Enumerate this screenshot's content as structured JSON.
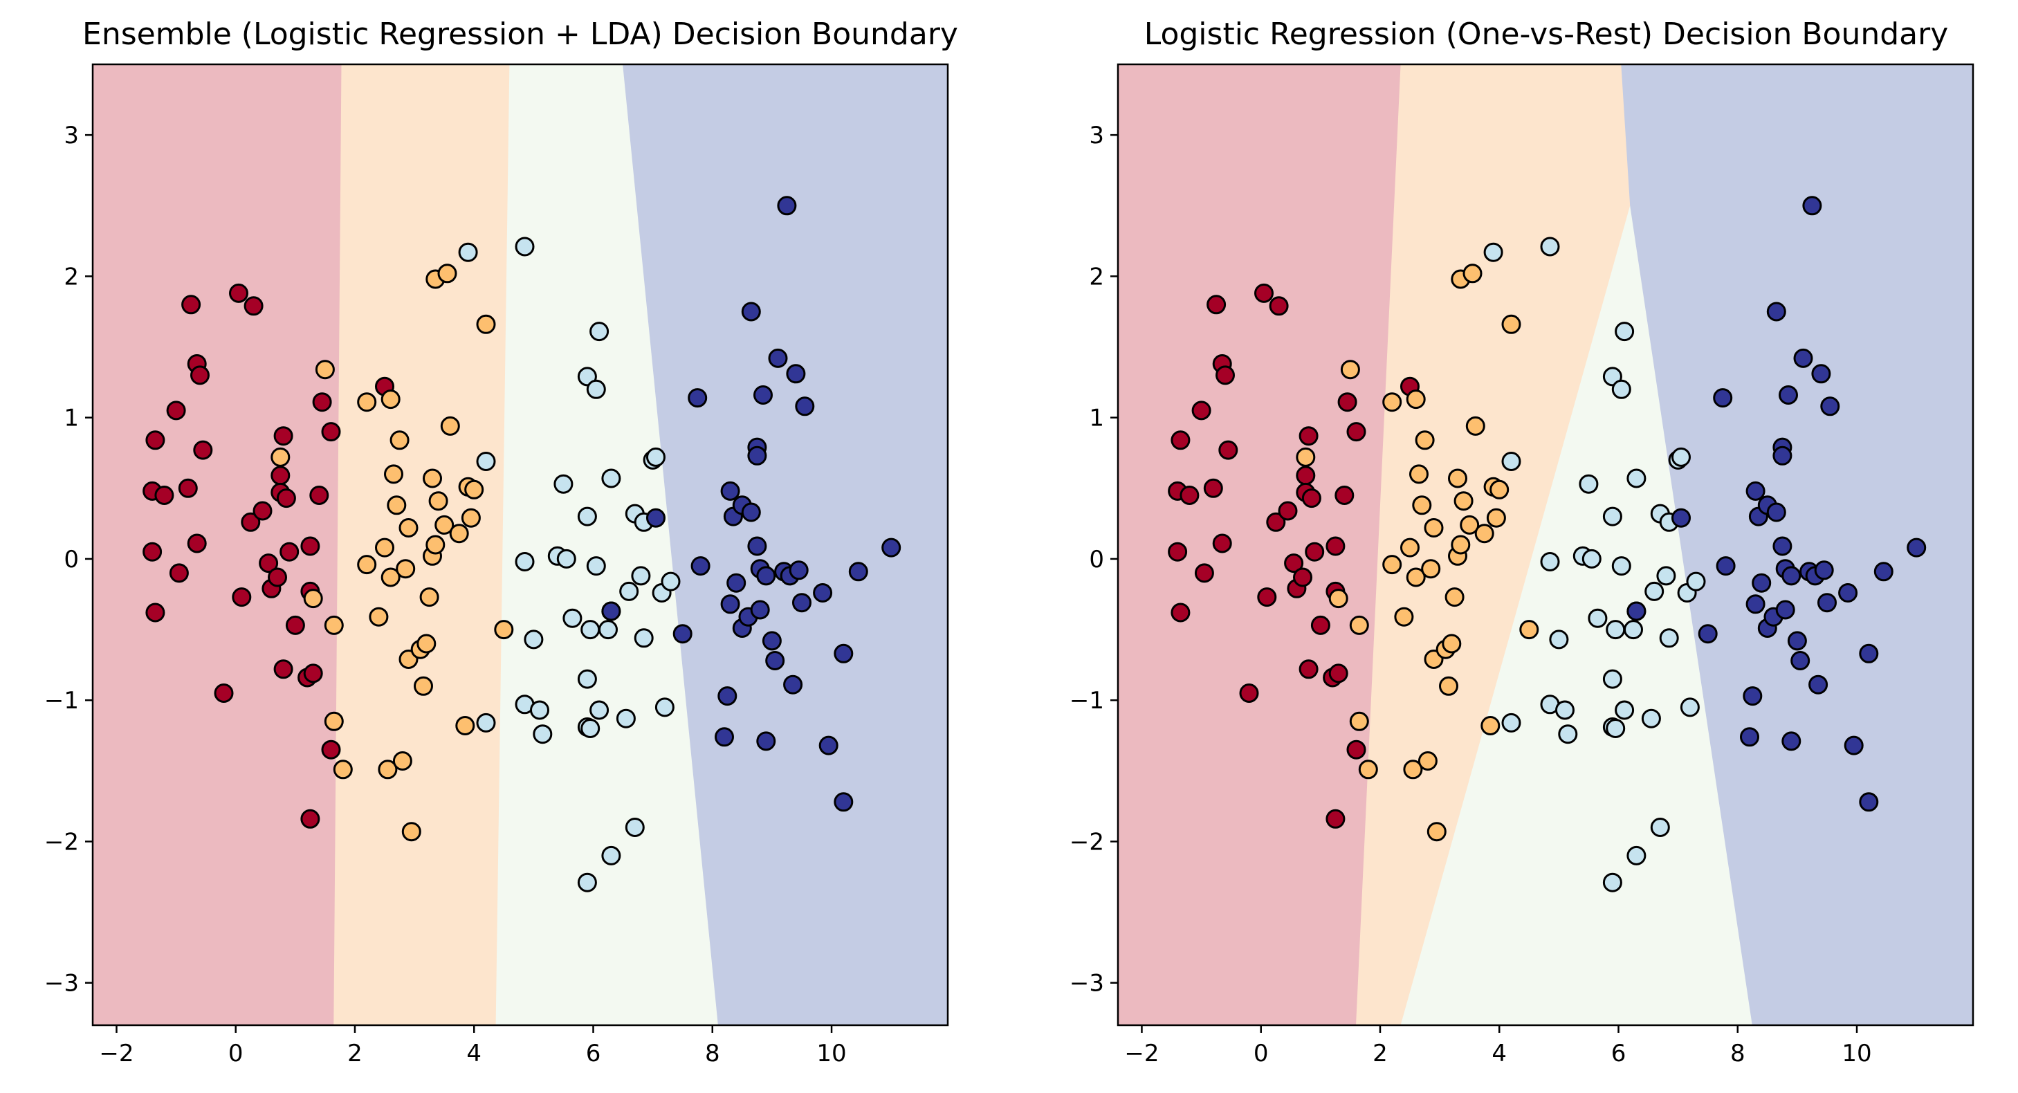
{
  "chart_data": [
    {
      "type": "scatter",
      "title": "Ensemble (Logistic Regression + LDA) Decision Boundary",
      "xlim": [
        -2.4,
        11.95
      ],
      "ylim": [
        -3.3,
        3.5
      ],
      "x_ticks": [
        -2,
        0,
        2,
        4,
        6,
        8,
        10
      ],
      "y_ticks": [
        -3,
        -2,
        -1,
        0,
        1,
        2,
        3
      ],
      "x_tick_labels": [
        "−2",
        "0",
        "2",
        "4",
        "6",
        "8",
        "10"
      ],
      "y_tick_labels": [
        "−3",
        "−2",
        "−1",
        "0",
        "1",
        "2",
        "3"
      ],
      "grid": false,
      "regions": [
        {
          "class": "0",
          "color": "#ecbac0",
          "polygon": [
            [
              -2.4,
              3.5
            ],
            [
              1.78,
              3.5
            ],
            [
              1.65,
              -3.3
            ],
            [
              -2.4,
              -3.3
            ]
          ]
        },
        {
          "class": "1",
          "color": "#fde5cd",
          "polygon": [
            [
              1.78,
              3.5
            ],
            [
              4.6,
              3.5
            ],
            [
              4.37,
              -3.3
            ],
            [
              1.65,
              -3.3
            ]
          ]
        },
        {
          "class": "2",
          "color": "#f3f9f1",
          "polygon": [
            [
              4.6,
              3.5
            ],
            [
              6.5,
              3.5
            ],
            [
              8.1,
              -3.3
            ],
            [
              4.37,
              -3.3
            ]
          ]
        },
        {
          "class": "3",
          "color": "#c4cce4",
          "polygon": [
            [
              6.5,
              3.5
            ],
            [
              11.95,
              3.5
            ],
            [
              11.95,
              -3.3
            ],
            [
              8.1,
              -3.3
            ]
          ]
        }
      ]
    },
    {
      "type": "scatter",
      "title": "Logistic Regression (One-vs-Rest) Decision Boundary",
      "xlim": [
        -2.4,
        11.95
      ],
      "ylim": [
        -3.3,
        3.5
      ],
      "x_ticks": [
        -2,
        0,
        2,
        4,
        6,
        8,
        10
      ],
      "y_ticks": [
        -3,
        -2,
        -1,
        0,
        1,
        2,
        3
      ],
      "x_tick_labels": [
        "−2",
        "0",
        "2",
        "4",
        "6",
        "8",
        "10"
      ],
      "y_tick_labels": [
        "−3",
        "−2",
        "−1",
        "0",
        "1",
        "2",
        "3"
      ],
      "grid": false,
      "regions": [
        {
          "class": "0",
          "color": "#ecbac0",
          "polygon": [
            [
              -2.4,
              3.5
            ],
            [
              2.35,
              3.5
            ],
            [
              1.6,
              -3.3
            ],
            [
              -2.4,
              -3.3
            ]
          ]
        },
        {
          "class": "1",
          "color": "#fde5cd",
          "polygon": [
            [
              2.35,
              3.5
            ],
            [
              6.05,
              3.5
            ],
            [
              6.2,
              2.5
            ],
            [
              2.35,
              -3.3
            ],
            [
              1.6,
              -3.3
            ]
          ]
        },
        {
          "class": "2",
          "color": "#f3f9f1",
          "polygon": [
            [
              6.2,
              2.5
            ],
            [
              8.25,
              -3.3
            ],
            [
              2.35,
              -3.3
            ]
          ]
        },
        {
          "class": "3",
          "color": "#c4cce4",
          "polygon": [
            [
              6.05,
              3.5
            ],
            [
              11.95,
              3.5
            ],
            [
              11.95,
              -3.3
            ],
            [
              8.25,
              -3.3
            ],
            [
              6.2,
              2.5
            ]
          ]
        }
      ]
    }
  ],
  "point_colors": {
    "0": "#a50026",
    "1": "#fdbf6f",
    "2": "#c6e3ef",
    "3": "#313695"
  },
  "points": {
    "0": [
      [
        -1.35,
        0.84
      ],
      [
        -1.4,
        0.48
      ],
      [
        -1.2,
        0.45
      ],
      [
        -1.4,
        0.05
      ],
      [
        -1.35,
        -0.38
      ],
      [
        -1.0,
        1.05
      ],
      [
        -0.95,
        -0.1
      ],
      [
        -0.8,
        0.5
      ],
      [
        -0.75,
        1.8
      ],
      [
        -0.65,
        1.38
      ],
      [
        -0.6,
        1.3
      ],
      [
        -0.55,
        0.77
      ],
      [
        -0.65,
        0.11
      ],
      [
        -0.2,
        -0.95
      ],
      [
        0.05,
        1.88
      ],
      [
        0.1,
        -0.27
      ],
      [
        0.25,
        0.26
      ],
      [
        0.3,
        1.79
      ],
      [
        0.45,
        0.34
      ],
      [
        0.55,
        -0.03
      ],
      [
        0.6,
        -0.21
      ],
      [
        0.7,
        -0.13
      ],
      [
        0.75,
        0.59
      ],
      [
        0.8,
        0.87
      ],
      [
        0.75,
        0.47
      ],
      [
        0.85,
        0.43
      ],
      [
        0.8,
        -0.78
      ],
      [
        0.9,
        0.05
      ],
      [
        1.0,
        -0.47
      ],
      [
        1.2,
        -0.84
      ],
      [
        1.25,
        -0.23
      ],
      [
        1.25,
        0.09
      ],
      [
        1.4,
        0.45
      ],
      [
        1.45,
        1.11
      ],
      [
        1.6,
        0.9
      ],
      [
        1.6,
        -1.35
      ],
      [
        1.25,
        -1.84
      ],
      [
        1.3,
        -0.81
      ],
      [
        2.5,
        1.22
      ]
    ],
    "1": [
      [
        0.75,
        0.72
      ],
      [
        1.3,
        -0.28
      ],
      [
        1.5,
        1.34
      ],
      [
        1.65,
        -0.47
      ],
      [
        1.65,
        -1.15
      ],
      [
        1.8,
        -1.49
      ],
      [
        2.2,
        1.11
      ],
      [
        2.2,
        -0.04
      ],
      [
        2.4,
        -0.41
      ],
      [
        2.5,
        0.08
      ],
      [
        2.55,
        -1.49
      ],
      [
        2.6,
        1.13
      ],
      [
        2.65,
        0.6
      ],
      [
        2.6,
        -0.13
      ],
      [
        2.7,
        0.38
      ],
      [
        2.75,
        0.84
      ],
      [
        2.8,
        -1.43
      ],
      [
        2.85,
        -0.07
      ],
      [
        2.9,
        0.22
      ],
      [
        2.9,
        -0.71
      ],
      [
        2.95,
        -1.93
      ],
      [
        3.1,
        -0.64
      ],
      [
        3.15,
        -0.9
      ],
      [
        3.25,
        -0.27
      ],
      [
        3.2,
        -0.6
      ],
      [
        3.3,
        0.57
      ],
      [
        3.3,
        0.02
      ],
      [
        3.35,
        0.1
      ],
      [
        3.4,
        0.41
      ],
      [
        3.35,
        1.98
      ],
      [
        3.5,
        0.24
      ],
      [
        3.55,
        2.02
      ],
      [
        3.6,
        0.94
      ],
      [
        3.75,
        0.18
      ],
      [
        3.85,
        -1.18
      ],
      [
        3.9,
        0.51
      ],
      [
        3.95,
        0.29
      ],
      [
        4.0,
        0.49
      ],
      [
        4.2,
        1.66
      ],
      [
        4.5,
        -0.5
      ]
    ],
    "2": [
      [
        3.9,
        2.17
      ],
      [
        4.2,
        0.69
      ],
      [
        4.2,
        -1.16
      ],
      [
        4.85,
        2.21
      ],
      [
        4.85,
        -0.02
      ],
      [
        4.85,
        -1.03
      ],
      [
        5.0,
        -0.57
      ],
      [
        5.1,
        -1.07
      ],
      [
        5.15,
        -1.24
      ],
      [
        5.4,
        0.02
      ],
      [
        5.5,
        0.53
      ],
      [
        5.55,
        -0.0
      ],
      [
        5.65,
        -0.42
      ],
      [
        5.9,
        1.29
      ],
      [
        5.9,
        0.3
      ],
      [
        5.9,
        -0.85
      ],
      [
        5.9,
        -1.19
      ],
      [
        5.95,
        -0.5
      ],
      [
        5.95,
        -1.2
      ],
      [
        6.05,
        1.2
      ],
      [
        6.05,
        -0.05
      ],
      [
        6.1,
        1.61
      ],
      [
        6.1,
        -1.07
      ],
      [
        6.25,
        -0.5
      ],
      [
        6.3,
        -2.1
      ],
      [
        6.3,
        0.57
      ],
      [
        6.55,
        -1.13
      ],
      [
        6.6,
        -0.23
      ],
      [
        6.7,
        -1.9
      ],
      [
        6.7,
        0.32
      ],
      [
        6.8,
        -0.12
      ],
      [
        6.85,
        -0.56
      ],
      [
        6.85,
        0.26
      ],
      [
        7.0,
        0.7
      ],
      [
        7.05,
        0.72
      ],
      [
        7.2,
        -1.05
      ],
      [
        7.15,
        -0.24
      ],
      [
        7.3,
        -0.16
      ],
      [
        5.9,
        -2.29
      ],
      [
        6.3,
        -0.37
      ]
    ],
    "3": [
      [
        6.3,
        -0.37
      ],
      [
        7.05,
        0.29
      ],
      [
        7.5,
        -0.53
      ],
      [
        7.75,
        1.14
      ],
      [
        7.8,
        -0.05
      ],
      [
        8.2,
        -1.26
      ],
      [
        8.25,
        -0.97
      ],
      [
        8.3,
        0.48
      ],
      [
        8.3,
        -0.32
      ],
      [
        8.35,
        0.3
      ],
      [
        8.4,
        -0.17
      ],
      [
        8.5,
        -0.49
      ],
      [
        8.5,
        0.38
      ],
      [
        8.6,
        -0.41
      ],
      [
        8.65,
        0.33
      ],
      [
        8.65,
        1.75
      ],
      [
        8.75,
        0.09
      ],
      [
        8.75,
        0.79
      ],
      [
        8.75,
        0.73
      ],
      [
        8.8,
        -0.36
      ],
      [
        8.8,
        -0.07
      ],
      [
        8.85,
        1.16
      ],
      [
        8.9,
        -0.12
      ],
      [
        8.9,
        -1.29
      ],
      [
        9.0,
        -0.58
      ],
      [
        9.05,
        -0.72
      ],
      [
        9.1,
        1.42
      ],
      [
        9.2,
        -0.09
      ],
      [
        9.25,
        2.5
      ],
      [
        9.3,
        -0.12
      ],
      [
        9.35,
        -0.89
      ],
      [
        9.4,
        1.31
      ],
      [
        9.45,
        -0.08
      ],
      [
        9.5,
        -0.31
      ],
      [
        9.55,
        1.08
      ],
      [
        9.85,
        -0.24
      ],
      [
        9.95,
        -1.32
      ],
      [
        10.2,
        -0.67
      ],
      [
        10.2,
        -1.72
      ],
      [
        10.45,
        -0.09
      ],
      [
        11.0,
        0.08
      ]
    ]
  },
  "styles": {
    "marker_edge": "#000000",
    "frame": "#000000",
    "background": "#ffffff"
  }
}
